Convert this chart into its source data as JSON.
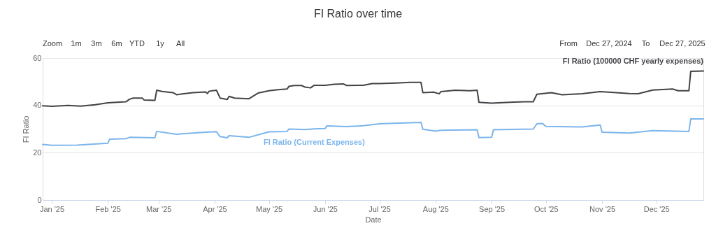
{
  "chart_data": {
    "type": "line",
    "title": "FI Ratio over time",
    "xlabel": "Date",
    "ylabel": "FI Ratio",
    "xlim": [
      "2024-12-27",
      "2025-12-27"
    ],
    "xticks": [
      {
        "value": "2025-01-01",
        "label": "Jan '25"
      },
      {
        "value": "2025-02-01",
        "label": "Feb '25"
      },
      {
        "value": "2025-03-01",
        "label": "Mar '25"
      },
      {
        "value": "2025-04-01",
        "label": "Apr '25"
      },
      {
        "value": "2025-05-01",
        "label": "May '25"
      },
      {
        "value": "2025-06-01",
        "label": "Jun '25"
      },
      {
        "value": "2025-07-01",
        "label": "Jul '25"
      },
      {
        "value": "2025-08-01",
        "label": "Aug '25"
      },
      {
        "value": "2025-09-01",
        "label": "Sep '25"
      },
      {
        "value": "2025-10-01",
        "label": "Oct '25"
      },
      {
        "value": "2025-11-01",
        "label": "Nov '25"
      },
      {
        "value": "2025-12-01",
        "label": "Dec '25"
      }
    ],
    "ylim": [
      0,
      60
    ],
    "yticks": [
      0,
      20,
      40,
      60
    ],
    "grid": "y",
    "legend": false,
    "marker": "none",
    "line_style": "solid",
    "annotations": [
      "Zoom",
      "1m",
      "3m",
      "6m",
      "YTD",
      "1y",
      "All",
      "From",
      "Dec 27, 2024",
      "To",
      "Dec 27, 2025"
    ],
    "series": [
      {
        "name": "FI Ratio (100000 CHF yearly expenses)",
        "color": "#434348",
        "x": [
          "2024-12-27",
          "2025-01-01",
          "2025-01-10",
          "2025-01-17",
          "2025-01-25",
          "2025-02-01",
          "2025-02-11",
          "2025-02-13",
          "2025-02-15",
          "2025-02-20",
          "2025-02-21",
          "2025-02-27",
          "2025-02-28",
          "2025-03-03",
          "2025-03-09",
          "2025-03-11",
          "2025-03-15",
          "2025-03-20",
          "2025-03-27",
          "2025-03-28",
          "2025-03-29",
          "2025-04-02",
          "2025-04-04",
          "2025-04-08",
          "2025-04-09",
          "2025-04-12",
          "2025-04-20",
          "2025-04-25",
          "2025-05-01",
          "2025-05-06",
          "2025-05-11",
          "2025-05-12",
          "2025-05-15",
          "2025-05-19",
          "2025-05-21",
          "2025-05-24",
          "2025-05-26",
          "2025-06-01",
          "2025-06-06",
          "2025-06-11",
          "2025-06-13",
          "2025-06-22",
          "2025-06-27",
          "2025-07-01",
          "2025-07-10",
          "2025-07-18",
          "2025-07-24",
          "2025-07-25",
          "2025-07-31",
          "2025-08-03",
          "2025-08-04",
          "2025-08-12",
          "2025-08-20",
          "2025-08-24",
          "2025-08-25",
          "2025-09-01",
          "2025-09-11",
          "2025-09-19",
          "2025-09-24",
          "2025-09-26",
          "2025-10-04",
          "2025-10-10",
          "2025-10-21",
          "2025-10-31",
          "2025-11-09",
          "2025-11-16",
          "2025-11-21",
          "2025-11-29",
          "2025-12-10",
          "2025-12-13",
          "2025-12-19",
          "2025-12-20",
          "2025-12-27"
        ],
        "values": [
          39.8,
          39.6,
          40.0,
          39.7,
          40.3,
          41.1,
          41.5,
          42.6,
          43.1,
          43.1,
          42.3,
          42.1,
          46.4,
          45.9,
          45.4,
          44.5,
          44.9,
          45.4,
          45.7,
          45.0,
          46.0,
          46.4,
          43.1,
          42.5,
          43.8,
          43.1,
          42.8,
          45.2,
          46.2,
          46.6,
          46.9,
          48.0,
          48.4,
          48.4,
          47.7,
          47.4,
          48.5,
          48.5,
          48.9,
          49.1,
          48.4,
          48.5,
          49.2,
          49.2,
          49.4,
          49.7,
          49.7,
          45.4,
          45.6,
          44.9,
          45.8,
          46.4,
          46.2,
          46.4,
          41.3,
          40.9,
          41.3,
          41.5,
          41.5,
          44.7,
          45.4,
          44.5,
          44.9,
          45.8,
          45.4,
          45.0,
          44.9,
          46.5,
          46.9,
          46.2,
          46.2,
          54.4,
          54.5
        ]
      },
      {
        "name": "FI Ratio (Current Expenses)",
        "color": "#7cb5ec",
        "x": [
          "2024-12-27",
          "2025-01-01",
          "2025-01-15",
          "2025-02-01",
          "2025-02-02",
          "2025-02-11",
          "2025-02-13",
          "2025-02-27",
          "2025-02-28",
          "2025-03-11",
          "2025-03-27",
          "2025-04-02",
          "2025-04-04",
          "2025-04-08",
          "2025-04-09",
          "2025-04-20",
          "2025-05-01",
          "2025-05-11",
          "2025-05-12",
          "2025-05-21",
          "2025-05-26",
          "2025-06-01",
          "2025-06-02",
          "2025-06-13",
          "2025-06-22",
          "2025-07-01",
          "2025-07-24",
          "2025-07-25",
          "2025-08-01",
          "2025-08-04",
          "2025-08-24",
          "2025-08-25",
          "2025-09-01",
          "2025-09-02",
          "2025-09-24",
          "2025-09-26",
          "2025-09-29",
          "2025-10-01",
          "2025-10-21",
          "2025-10-31",
          "2025-11-01",
          "2025-11-16",
          "2025-11-29",
          "2025-12-19",
          "2025-12-20",
          "2025-12-27"
        ],
        "values": [
          23.5,
          23.1,
          23.2,
          24.0,
          25.7,
          25.9,
          26.5,
          26.3,
          29.0,
          27.8,
          28.7,
          28.9,
          26.8,
          26.3,
          27.2,
          26.5,
          28.8,
          29.0,
          30.0,
          29.8,
          30.1,
          30.2,
          31.3,
          31.0,
          31.4,
          32.2,
          32.8,
          29.9,
          29.1,
          29.5,
          29.7,
          26.4,
          26.5,
          29.7,
          30.0,
          32.2,
          32.4,
          31.1,
          30.9,
          31.7,
          28.7,
          28.3,
          29.3,
          29.0,
          34.3,
          34.3
        ]
      }
    ]
  }
}
